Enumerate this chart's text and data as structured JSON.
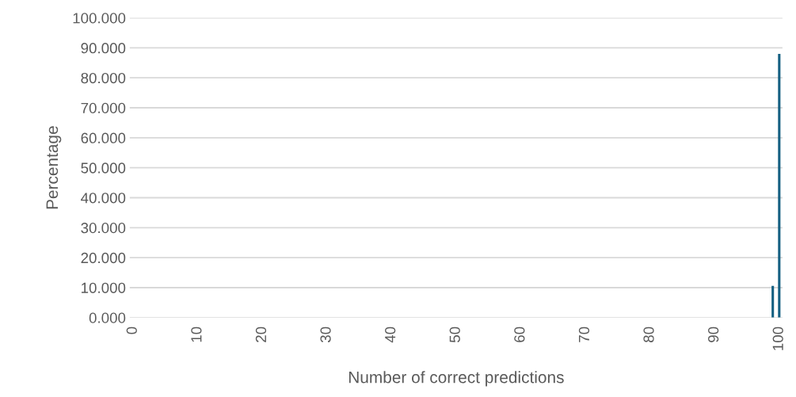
{
  "chart_data": {
    "type": "bar",
    "xlabel": "Number of correct predictions",
    "ylabel": "Percentage",
    "categories": [
      "0",
      null,
      null,
      null,
      null,
      null,
      null,
      null,
      null,
      null,
      "10",
      null,
      null,
      null,
      null,
      null,
      null,
      null,
      null,
      null,
      "20",
      null,
      null,
      null,
      null,
      null,
      null,
      null,
      null,
      null,
      "30",
      null,
      null,
      null,
      null,
      null,
      null,
      null,
      null,
      null,
      "40",
      null,
      null,
      null,
      null,
      null,
      null,
      null,
      null,
      null,
      "50",
      null,
      null,
      null,
      null,
      null,
      null,
      null,
      null,
      null,
      "60",
      null,
      null,
      null,
      null,
      null,
      null,
      null,
      null,
      null,
      "70",
      null,
      null,
      null,
      null,
      null,
      null,
      null,
      null,
      null,
      "80",
      null,
      null,
      null,
      null,
      null,
      null,
      null,
      null,
      null,
      "90",
      null,
      null,
      null,
      null,
      null,
      null,
      null,
      null,
      null,
      "100"
    ],
    "values": [
      0,
      0,
      0,
      0,
      0,
      0,
      0,
      0,
      0,
      0,
      0,
      0,
      0,
      0,
      0,
      0,
      0,
      0,
      0,
      0,
      0,
      0,
      0,
      0,
      0,
      0,
      0,
      0,
      0,
      0,
      0,
      0,
      0,
      0,
      0,
      0,
      0,
      0,
      0,
      0,
      0,
      0,
      0,
      0,
      0,
      0,
      0,
      0,
      0,
      0,
      0,
      0,
      0,
      0,
      0,
      0,
      0,
      0,
      0,
      0,
      0,
      0,
      0,
      0,
      0,
      0,
      0,
      0,
      0,
      0,
      0,
      0,
      0,
      0,
      0,
      0,
      0,
      0,
      0,
      0,
      0,
      0,
      0,
      0,
      0,
      0,
      0,
      0,
      0,
      0,
      0,
      0,
      0,
      0,
      0,
      0,
      0,
      0,
      0,
      10.6,
      88.0
    ],
    "color": "#156082",
    "ylim": [
      0,
      100
    ],
    "yticks": [
      {
        "value": 0,
        "label": "0.000"
      },
      {
        "value": 10,
        "label": "10.000"
      },
      {
        "value": 20,
        "label": "20.000"
      },
      {
        "value": 30,
        "label": "30.000"
      },
      {
        "value": 40,
        "label": "40.000"
      },
      {
        "value": 50,
        "label": "50.000"
      },
      {
        "value": 60,
        "label": "60.000"
      },
      {
        "value": 70,
        "label": "70.000"
      },
      {
        "value": 80,
        "label": "80.000"
      },
      {
        "value": 90,
        "label": "90.000"
      },
      {
        "value": 100,
        "label": "100.000"
      }
    ],
    "grid": "y",
    "legend": false
  }
}
